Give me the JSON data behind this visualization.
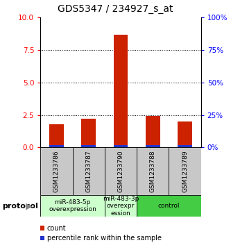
{
  "title": "GDS5347 / 234927_s_at",
  "samples": [
    "GSM1233786",
    "GSM1233787",
    "GSM1233790",
    "GSM1233788",
    "GSM1233789"
  ],
  "count_values": [
    1.8,
    2.2,
    8.7,
    2.4,
    2.0
  ],
  "percentile_values": [
    0.18,
    0.18,
    0.18,
    0.18,
    0.18
  ],
  "ylim_left": [
    0,
    10
  ],
  "ylim_right": [
    0,
    100
  ],
  "yticks_left": [
    0,
    2.5,
    5,
    7.5,
    10
  ],
  "yticks_right": [
    0,
    25,
    50,
    75,
    100
  ],
  "bar_color_red": "#cc2200",
  "bar_color_blue": "#2233cc",
  "proto_groups": [
    {
      "start": 0,
      "end": 1,
      "label": "miR-483-5p\noverexpression",
      "color": "#ccffcc"
    },
    {
      "start": 2,
      "end": 2,
      "label": "miR-483-3p\noverexpr\nession",
      "color": "#ccffcc"
    },
    {
      "start": 3,
      "end": 4,
      "label": "control",
      "color": "#44cc44"
    }
  ],
  "protocol_label": "protocol",
  "legend_red": "count",
  "legend_blue": "percentile rank within the sample",
  "bar_width": 0.45,
  "sample_area_color": "#c8c8c8",
  "title_fontsize": 10,
  "tick_fontsize": 7.5,
  "label_fontsize": 6.5,
  "proto_fontsize": 6.5
}
